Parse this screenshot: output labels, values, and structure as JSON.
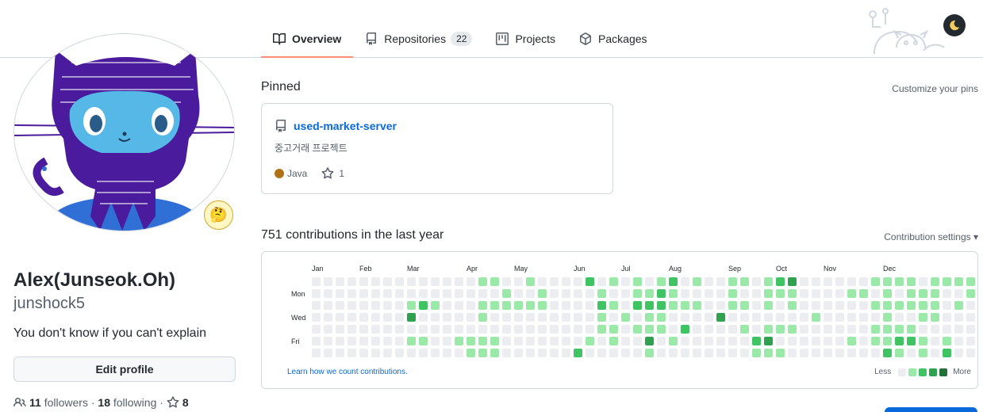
{
  "tabs": [
    {
      "label": "Overview",
      "icon": "book-icon"
    },
    {
      "label": "Repositories",
      "icon": "repo-icon",
      "count": "22"
    },
    {
      "label": "Projects",
      "icon": "project-icon"
    },
    {
      "label": "Packages",
      "icon": "package-icon"
    }
  ],
  "profile": {
    "name": "Alex(Junseok.Oh)",
    "login": "junshock5",
    "bio": "You don't know if you can't explain",
    "edit_label": "Edit profile",
    "followers_count": "11",
    "followers_label": "followers",
    "following_count": "18",
    "following_label": "following",
    "stars_count": "8",
    "status_emoji": "🤔"
  },
  "pinned": {
    "title": "Pinned",
    "customize_label": "Customize your pins",
    "repo": {
      "name": "used-market-server",
      "description": "중고거래 프로젝트",
      "language": "Java",
      "language_color": "#b07219",
      "stars": "1"
    }
  },
  "contributions": {
    "title": "751 contributions in the last year",
    "settings_label": "Contribution settings ▾",
    "months": [
      "Jan",
      "Feb",
      "Mar",
      "Apr",
      "May",
      "Jun",
      "Jul",
      "Aug",
      "Sep",
      "Oct",
      "Nov",
      "Dec"
    ],
    "day_labels": [
      "Mon",
      "Wed",
      "Fri"
    ],
    "learn_label": "Learn how we count contributions.",
    "legend_less": "Less",
    "legend_more": "More",
    "level_colors": [
      "#ebedf0",
      "#9be9a8",
      "#40c463",
      "#30a14e",
      "#216e39"
    ],
    "weeks": [
      [
        0,
        0,
        0,
        0,
        0,
        0,
        0
      ],
      [
        0,
        0,
        0,
        0,
        0,
        0,
        0
      ],
      [
        0,
        0,
        0,
        0,
        0,
        0,
        0
      ],
      [
        0,
        0,
        0,
        0,
        0,
        0,
        0
      ],
      [
        0,
        0,
        0,
        0,
        0,
        0,
        0
      ],
      [
        0,
        0,
        0,
        0,
        0,
        0,
        0
      ],
      [
        0,
        0,
        0,
        0,
        0,
        0,
        0
      ],
      [
        0,
        0,
        0,
        0,
        0,
        0,
        0
      ],
      [
        0,
        0,
        1,
        3,
        0,
        1,
        0
      ],
      [
        0,
        0,
        2,
        0,
        0,
        1,
        0
      ],
      [
        0,
        0,
        1,
        0,
        0,
        0,
        0
      ],
      [
        0,
        0,
        0,
        0,
        0,
        0,
        0
      ],
      [
        0,
        0,
        0,
        0,
        0,
        1,
        0
      ],
      [
        0,
        0,
        0,
        0,
        0,
        1,
        1
      ],
      [
        1,
        0,
        1,
        1,
        0,
        1,
        1
      ],
      [
        1,
        0,
        1,
        0,
        0,
        1,
        1
      ],
      [
        0,
        1,
        1,
        0,
        0,
        0,
        0
      ],
      [
        0,
        0,
        1,
        0,
        0,
        0,
        0
      ],
      [
        1,
        0,
        1,
        0,
        0,
        0,
        0
      ],
      [
        0,
        1,
        1,
        0,
        0,
        0,
        0
      ],
      [
        0,
        0,
        0,
        0,
        0,
        0,
        0
      ],
      [
        0,
        0,
        0,
        0,
        0,
        0,
        0
      ],
      [
        0,
        0,
        0,
        0,
        0,
        0,
        2
      ],
      [
        2,
        0,
        0,
        0,
        0,
        1,
        0
      ],
      [
        0,
        1,
        2,
        1,
        1,
        0,
        0
      ],
      [
        1,
        0,
        1,
        0,
        1,
        1,
        0
      ],
      [
        0,
        0,
        0,
        1,
        0,
        0,
        0
      ],
      [
        1,
        1,
        2,
        0,
        1,
        0,
        0
      ],
      [
        0,
        1,
        2,
        1,
        1,
        3,
        1
      ],
      [
        1,
        2,
        2,
        1,
        1,
        0,
        0
      ],
      [
        2,
        1,
        1,
        0,
        0,
        1,
        0
      ],
      [
        0,
        0,
        1,
        0,
        2,
        0,
        0
      ],
      [
        1,
        0,
        1,
        0,
        0,
        0,
        0
      ],
      [
        0,
        0,
        0,
        0,
        0,
        0,
        0
      ],
      [
        0,
        0,
        0,
        3,
        0,
        0,
        0
      ],
      [
        1,
        1,
        1,
        0,
        0,
        0,
        0
      ],
      [
        1,
        0,
        1,
        0,
        1,
        0,
        0
      ],
      [
        0,
        0,
        0,
        0,
        0,
        2,
        1
      ],
      [
        1,
        1,
        1,
        0,
        1,
        3,
        1
      ],
      [
        2,
        1,
        0,
        0,
        1,
        0,
        1
      ],
      [
        3,
        1,
        1,
        0,
        1,
        0,
        0
      ],
      [
        0,
        0,
        0,
        0,
        0,
        0,
        0
      ],
      [
        0,
        0,
        0,
        1,
        0,
        0,
        0
      ],
      [
        0,
        0,
        0,
        0,
        0,
        0,
        0
      ],
      [
        0,
        0,
        0,
        0,
        0,
        0,
        0
      ],
      [
        0,
        1,
        0,
        0,
        0,
        1,
        0
      ],
      [
        0,
        1,
        0,
        0,
        0,
        0,
        0
      ],
      [
        1,
        0,
        1,
        0,
        1,
        1,
        0
      ],
      [
        1,
        1,
        1,
        1,
        1,
        1,
        2
      ],
      [
        1,
        0,
        1,
        0,
        1,
        2,
        1
      ],
      [
        1,
        1,
        1,
        0,
        1,
        2,
        0
      ],
      [
        0,
        1,
        1,
        1,
        0,
        1,
        1
      ],
      [
        1,
        1,
        1,
        1,
        0,
        0,
        0
      ],
      [
        1,
        0,
        0,
        0,
        0,
        1,
        2
      ],
      [
        1,
        0,
        1,
        0,
        0,
        0,
        0
      ],
      [
        1,
        1,
        0,
        0,
        0,
        0,
        0
      ]
    ]
  }
}
